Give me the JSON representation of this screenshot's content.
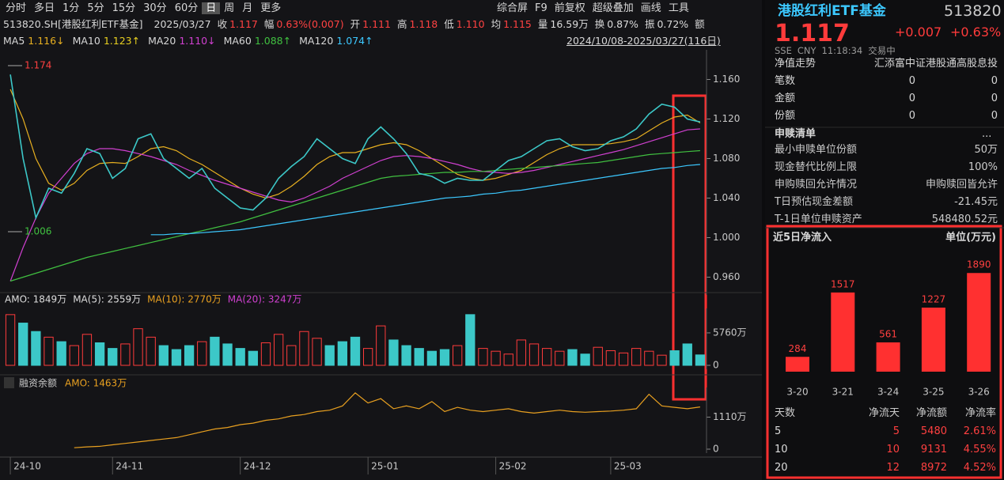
{
  "toolbar": {
    "tabs": [
      "分时",
      "多日",
      "1分",
      "5分",
      "15分",
      "30分",
      "60分",
      "日",
      "周",
      "月",
      "更多"
    ],
    "tools": [
      "综合屏",
      "F9",
      "前复权",
      "超级叠加",
      "画线",
      "工具"
    ]
  },
  "info": {
    "code": "513820.SH[港股红利ETF基金]",
    "date": "2025/03/27",
    "items": [
      {
        "label": "收",
        "value": "1.117",
        "color": "#ff4242"
      },
      {
        "label": "幅",
        "value": "0.63%(0.007)",
        "color": "#ff4242"
      },
      {
        "label": "开",
        "value": "1.111",
        "color": "#ff4242"
      },
      {
        "label": "高",
        "value": "1.118",
        "color": "#ff4242"
      },
      {
        "label": "低",
        "value": "1.110",
        "color": "#ff4242"
      },
      {
        "label": "均",
        "value": "1.115",
        "color": "#ff4242"
      },
      {
        "label": "量",
        "value": "16.59万",
        "color": "#dddddd"
      },
      {
        "label": "换",
        "value": "0.87%",
        "color": "#dddddd"
      },
      {
        "label": "振",
        "value": "0.72%",
        "color": "#dddddd"
      },
      {
        "label": "额",
        "value": "",
        "color": "#dddddd"
      }
    ]
  },
  "chart_data": [
    {
      "type": "line",
      "color": "#3cc8c8",
      "date_range": "2024/10/08-2025/03/27(116日)",
      "legend_values": [
        "1.116↓",
        "1.123↑",
        "1.110↓",
        "1.088↑",
        "1.074↑"
      ],
      "legend_names": [
        "MA5",
        "MA10",
        "MA20",
        "MA60",
        "MA120"
      ],
      "legend_colors": [
        "#e8b020",
        "#e8d020",
        "#d040d0",
        "#40c040",
        "#3cc8ff"
      ],
      "annotations": [
        1.174,
        1.006
      ],
      "values": [
        1.165,
        1.08,
        1.02,
        1.05,
        1.045,
        1.065,
        1.09,
        1.085,
        1.06,
        1.07,
        1.1,
        1.105,
        1.08,
        1.07,
        1.06,
        1.07,
        1.05,
        1.04,
        1.03,
        1.028,
        1.04,
        1.06,
        1.072,
        1.082,
        1.1,
        1.09,
        1.08,
        1.075,
        1.1,
        1.112,
        1.1,
        1.085,
        1.065,
        1.062,
        1.055,
        1.06,
        1.058,
        1.058,
        1.068,
        1.078,
        1.082,
        1.09,
        1.098,
        1.1,
        1.092,
        1.088,
        1.09,
        1.098,
        1.102,
        1.11,
        1.125,
        1.135,
        1.132,
        1.12,
        1.117
      ],
      "series": [
        {
          "color": "#e8b020",
          "values": [
            1.15,
            1.12,
            1.08,
            1.055,
            1.048,
            1.055,
            1.068,
            1.075,
            1.076,
            1.075,
            1.082,
            1.09,
            1.092,
            1.088,
            1.08,
            1.074,
            1.066,
            1.058,
            1.05,
            1.044,
            1.04,
            1.044,
            1.052,
            1.062,
            1.074,
            1.082,
            1.086,
            1.086,
            1.09,
            1.094,
            1.096,
            1.094,
            1.088,
            1.08,
            1.072,
            1.064,
            1.06,
            1.058,
            1.06,
            1.064,
            1.068,
            1.076,
            1.084,
            1.09,
            1.094,
            1.094,
            1.094,
            1.095,
            1.097,
            1.1,
            1.108,
            1.116,
            1.122,
            1.124,
            1.116
          ]
        },
        {
          "color": "#d040d0",
          "values": [
            0.956,
            0.99,
            1.02,
            1.045,
            1.06,
            1.075,
            1.085,
            1.09,
            1.09,
            1.088,
            1.085,
            1.082,
            1.078,
            1.074,
            1.068,
            1.063,
            1.058,
            1.054,
            1.05,
            1.046,
            1.042,
            1.038,
            1.036,
            1.04,
            1.046,
            1.052,
            1.06,
            1.066,
            1.072,
            1.078,
            1.082,
            1.083,
            1.082,
            1.08,
            1.077,
            1.074,
            1.07,
            1.067,
            1.066,
            1.065,
            1.066,
            1.068,
            1.071,
            1.074,
            1.077,
            1.08,
            1.083,
            1.086,
            1.089,
            1.093,
            1.097,
            1.101,
            1.105,
            1.109,
            1.11
          ]
        },
        {
          "color": "#40c040",
          "values": [
            0.956,
            0.96,
            0.964,
            0.968,
            0.972,
            0.976,
            0.98,
            0.983,
            0.986,
            0.989,
            0.992,
            0.995,
            0.998,
            1.001,
            1.004,
            1.007,
            1.01,
            1.013,
            1.016,
            1.02,
            1.024,
            1.028,
            1.032,
            1.036,
            1.04,
            1.044,
            1.048,
            1.052,
            1.056,
            1.06,
            1.062,
            1.063,
            1.064,
            1.065,
            1.066,
            1.066,
            1.067,
            1.067,
            1.068,
            1.069,
            1.07,
            1.071,
            1.072,
            1.073,
            1.074,
            1.075,
            1.076,
            1.078,
            1.08,
            1.082,
            1.084,
            1.085,
            1.086,
            1.087,
            1.088
          ]
        },
        {
          "color": "#3cc8ff",
          "values": [
            null,
            null,
            null,
            null,
            null,
            null,
            null,
            null,
            null,
            null,
            null,
            1.003,
            1.003,
            1.004,
            1.004,
            1.005,
            1.006,
            1.007,
            1.008,
            1.01,
            1.012,
            1.014,
            1.016,
            1.018,
            1.02,
            1.022,
            1.024,
            1.026,
            1.028,
            1.03,
            1.032,
            1.034,
            1.036,
            1.038,
            1.04,
            1.041,
            1.042,
            1.044,
            1.045,
            1.047,
            1.048,
            1.05,
            1.052,
            1.054,
            1.056,
            1.058,
            1.06,
            1.062,
            1.064,
            1.066,
            1.068,
            1.07,
            1.071,
            1.073,
            1.074
          ]
        }
      ],
      "ylim": [
        0.946,
        1.186
      ],
      "yticks": [
        {
          "value": 1.16,
          "label": "1.160"
        },
        {
          "value": 1.12,
          "label": "1.120"
        },
        {
          "value": 1.08,
          "label": "1.080"
        },
        {
          "value": 1.04,
          "label": "1.040"
        },
        {
          "value": 1.0,
          "label": "1.000"
        },
        {
          "value": 0.96,
          "label": "0.960"
        }
      ],
      "xticks": [
        {
          "value": 0,
          "label": "24-10"
        },
        {
          "value": 8,
          "label": "24-11"
        },
        {
          "value": 18,
          "label": "24-12"
        },
        {
          "value": 28,
          "label": "25-01"
        },
        {
          "value": 38,
          "label": "25-02"
        },
        {
          "value": 47,
          "label": "25-03"
        }
      ]
    },
    {
      "type": "bar",
      "legend": [
        {
          "text": "AMO: 1849万",
          "color": "#dddddd"
        },
        {
          "text": "MA(5): 2559万",
          "color": "#dddddd"
        },
        {
          "text": "MA(10): 2770万",
          "color": "#e8a020"
        },
        {
          "text": "MA(20): 3247万",
          "color": "#d040d0"
        }
      ],
      "values": [
        9000,
        7500,
        6000,
        5000,
        4200,
        3500,
        5500,
        4000,
        3000,
        3800,
        6500,
        5000,
        3500,
        2800,
        3500,
        4200,
        5000,
        3800,
        3000,
        2500,
        4000,
        5500,
        3500,
        6000,
        4800,
        3500,
        4200,
        5000,
        3000,
        7000,
        4500,
        3500,
        3000,
        2500,
        2800,
        3500,
        9000,
        3000,
        2500,
        2000,
        4500,
        3800,
        3000,
        2500,
        2800,
        2000,
        3200,
        2600,
        2200,
        3000,
        2500,
        1800,
        2600,
        3800,
        1849
      ],
      "up_color": "#ff3b3b",
      "down_color": "#3cc8c8",
      "ylim": [
        0,
        9400
      ],
      "yticks": [
        {
          "value": 5760,
          "label": "5760万"
        },
        0
      ]
    },
    {
      "type": "line",
      "title": "融资余额",
      "legend": "AMO: 1463万",
      "color": "#e8a020",
      "values": [
        null,
        null,
        null,
        null,
        null,
        50,
        80,
        100,
        150,
        200,
        250,
        300,
        350,
        400,
        500,
        600,
        700,
        750,
        850,
        900,
        1000,
        1050,
        1150,
        1200,
        1300,
        1350,
        1500,
        1950,
        1600,
        1750,
        1400,
        1500,
        1400,
        1650,
        1300,
        1450,
        1350,
        1300,
        1350,
        1400,
        1300,
        1250,
        1300,
        1350,
        1300,
        1280,
        1300,
        1320,
        1350,
        1400,
        1900,
        1500,
        1450,
        1400,
        1463
      ],
      "ylim": [
        0,
        2000
      ],
      "yticks": [
        {
          "value": 1110,
          "label": "1110万"
        },
        0
      ]
    },
    {
      "type": "bar",
      "title": "近5日净流入",
      "unit": "单位(万元)",
      "color": "#ff3030",
      "categories": [
        "3-20",
        "3-21",
        "3-24",
        "3-25",
        "3-26"
      ],
      "values": [
        284,
        1517,
        561,
        1227,
        1890
      ],
      "ylim": [
        0,
        2030
      ]
    }
  ],
  "quote": {
    "name": "港股红利ETF基金",
    "code": "513820",
    "price": "1.117",
    "change": "+0.007",
    "pct": "+0.63%",
    "meta": [
      "SSE",
      "CNY",
      "11:18:34",
      "交易中"
    ]
  },
  "nav_table": {
    "rows": [
      [
        "净值走势",
        "汇添富中证港股通高股息投"
      ],
      [
        "笔数",
        "0",
        "0"
      ],
      [
        "金额",
        "0",
        "0"
      ],
      [
        "份额",
        "0",
        "0"
      ]
    ]
  },
  "subscription": {
    "title": "申赎清单",
    "more": "...",
    "rows": [
      [
        "最小申赎单位份额",
        "50万"
      ],
      [
        "现金替代比例上限",
        "100%"
      ],
      [
        "申购赎回允许情况",
        "申购赎回皆允许"
      ],
      [
        "T日预估现金差额",
        "-21.45元"
      ],
      [
        "T-1日单位申赎资产",
        "548480.52元"
      ]
    ]
  },
  "netflow_table": {
    "columns": [
      "天数",
      "净流天",
      "净流额",
      "净流率"
    ],
    "rows": [
      [
        "5",
        "5",
        "5480",
        "2.61%"
      ],
      [
        "10",
        "10",
        "9131",
        "4.55%"
      ],
      [
        "20",
        "12",
        "8972",
        "4.52%"
      ]
    ]
  }
}
